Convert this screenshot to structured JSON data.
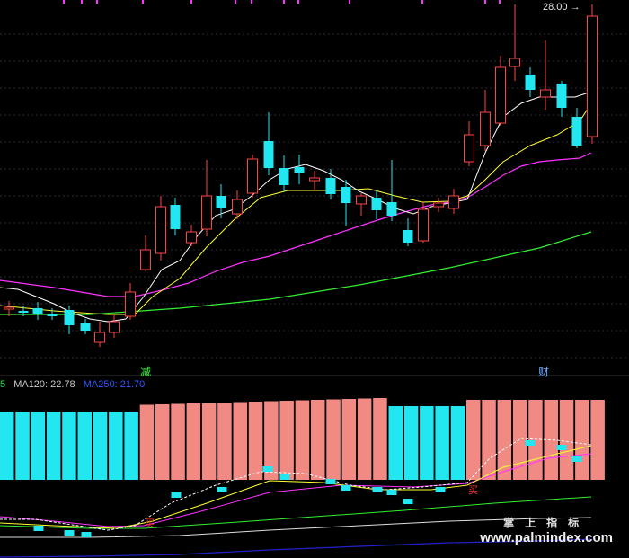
{
  "price_marker": "28.00",
  "signals": [
    {
      "text": "减",
      "color": "#33ff33"
    },
    {
      "text": "财",
      "color": "#66aaff"
    },
    {
      "text": "买",
      "color": "#ff3333"
    },
    {
      "text": "买",
      "color": "#ff3333"
    }
  ],
  "ma_legend": {
    "prefix": {
      "text": "5",
      "color": "#22dd44"
    },
    "ma120": {
      "text": "MA120: 22.78",
      "color": "#c8c8c8"
    },
    "ma250": {
      "text": "MA250: 21.70",
      "color": "#3355ff"
    }
  },
  "watermark": {
    "cn": "掌上指标",
    "url": "www.palmindex.com"
  },
  "colors": {
    "up": "#ff4444",
    "down": "#22e6f0",
    "bar_up": "#f28a84",
    "bar_down": "#22e6f0",
    "ma5": "#ffffff",
    "ma10": "#ffff33",
    "ma20": "#ff33ff",
    "ma60": "#33ee33",
    "ma250": "#2222cc"
  },
  "chart_data": {
    "type": "candlestick",
    "candles": [
      {
        "o": 0,
        "c": 0,
        "h": 0,
        "l": 0,
        "dir": "flat"
      }
    ],
    "indicator_bars": [
      {
        "dir": "down",
        "count": 9
      },
      {
        "dir": "up",
        "count": 16
      },
      {
        "dir": "down",
        "count": 5
      },
      {
        "dir": "up",
        "count": 9
      }
    ]
  }
}
